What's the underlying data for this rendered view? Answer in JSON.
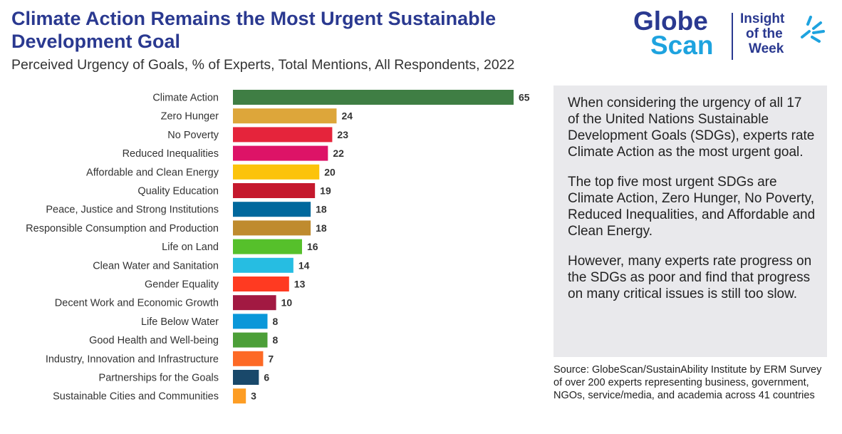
{
  "header": {
    "title": "Climate Action Remains the Most Urgent Sustainable Development Goal",
    "subtitle": "Perceived Urgency of Goals, % of Experts, Total Mentions, All Respondents, 2022"
  },
  "logo": {
    "brand_line1": "Globe",
    "brand_line2": "Scan",
    "tagline_line1": "Insight",
    "tagline_line2": "of the",
    "tagline_line3": "Week",
    "colors": {
      "primary": "#2a3990",
      "secondary": "#1ea3df"
    }
  },
  "chart_data": {
    "type": "bar",
    "orientation": "horizontal",
    "title": "",
    "xlabel": "",
    "ylabel": "",
    "xlim": [
      0,
      65
    ],
    "grid": false,
    "categories": [
      "Climate Action",
      "Zero Hunger",
      "No Poverty",
      "Reduced Inequalities",
      "Affordable and Clean Energy",
      "Quality Education",
      "Peace, Justice and Strong Institutions",
      "Responsible Consumption and Production",
      "Life on Land",
      "Clean Water and Sanitation",
      "Gender Equality",
      "Decent Work and Economic Growth",
      "Life Below Water",
      "Good Health and Well-being",
      "Industry, Innovation and Infrastructure",
      "Partnerships for the Goals",
      "Sustainable Cities and Communities"
    ],
    "values": [
      65,
      24,
      23,
      22,
      20,
      19,
      18,
      18,
      16,
      14,
      13,
      10,
      8,
      8,
      7,
      6,
      3
    ],
    "colors": [
      "#3f7e44",
      "#dda63a",
      "#e5243b",
      "#dd1367",
      "#fcc30b",
      "#c5192d",
      "#00689d",
      "#bf8b2e",
      "#56c02b",
      "#26bde2",
      "#ff3a21",
      "#a21942",
      "#0a97d9",
      "#4c9f38",
      "#fd6925",
      "#19486a",
      "#fd9d24"
    ]
  },
  "panel": {
    "paragraphs": [
      "When considering the urgency of all 17 of the United Nations Sustainable Development Goals (SDGs), experts rate Climate Action as the most urgent goal.",
      "The top five most urgent SDGs are Climate Action, Zero Hunger, No Poverty, Reduced Inequalities, and Affordable and Clean Energy.",
      "However, many experts rate progress on the SDGs as poor and find that progress on many critical issues is still too slow."
    ]
  },
  "source": {
    "text": "Source: GlobeScan/SustainAbility Institute by ERM Survey of over 200 experts representing business, government, NGOs, service/media, and academia across 41 countries"
  }
}
